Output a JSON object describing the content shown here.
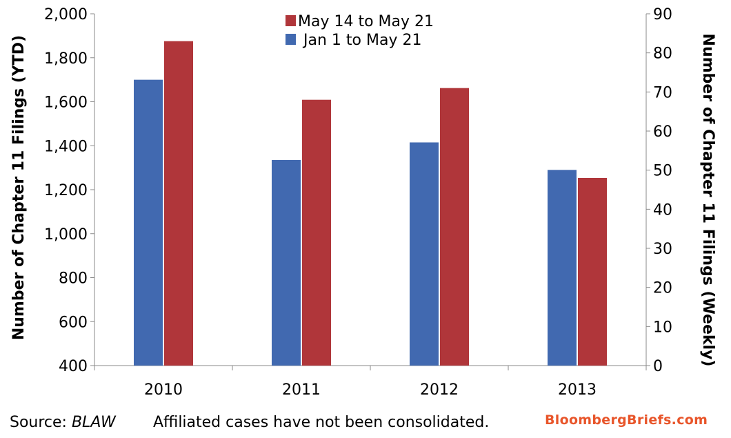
{
  "chart_data": {
    "type": "bar",
    "categories": [
      "2010",
      "2011",
      "2012",
      "2013"
    ],
    "series": [
      {
        "name": "Jan 1 to May 21",
        "axis": "left",
        "color": "#4169B0",
        "values": [
          1700,
          1335,
          1415,
          1290
        ]
      },
      {
        "name": "May 14 to May 21",
        "axis": "right",
        "color": "#B0363A",
        "values": [
          83,
          68,
          71,
          48
        ]
      }
    ],
    "left_axis": {
      "label": "Number of Chapter 11 Filings  (YTD)",
      "range": [
        400,
        2000
      ],
      "ticks": [
        400,
        600,
        800,
        1000,
        1200,
        1400,
        1600,
        1800,
        2000
      ],
      "tick_labels": [
        "400",
        "600",
        "800",
        "1,000",
        "1,200",
        "1,400",
        "1,600",
        "1,800",
        "2,000"
      ]
    },
    "right_axis": {
      "label": "Number of Chapter 11 Filings (Weekly)",
      "range": [
        0,
        90
      ],
      "ticks": [
        0,
        10,
        20,
        30,
        40,
        50,
        60,
        70,
        80,
        90
      ],
      "tick_labels": [
        "0",
        "10",
        "20",
        "30",
        "40",
        "50",
        "60",
        "70",
        "80",
        "90"
      ]
    },
    "grid": false,
    "legend_position": "top-center"
  },
  "footer": {
    "source_label": "Source: ",
    "source_name": "BLAW",
    "note": "Affiliated cases have not been consolidated.",
    "brand": "BloombergBriefs.com",
    "brand_color": "#E8552A"
  }
}
